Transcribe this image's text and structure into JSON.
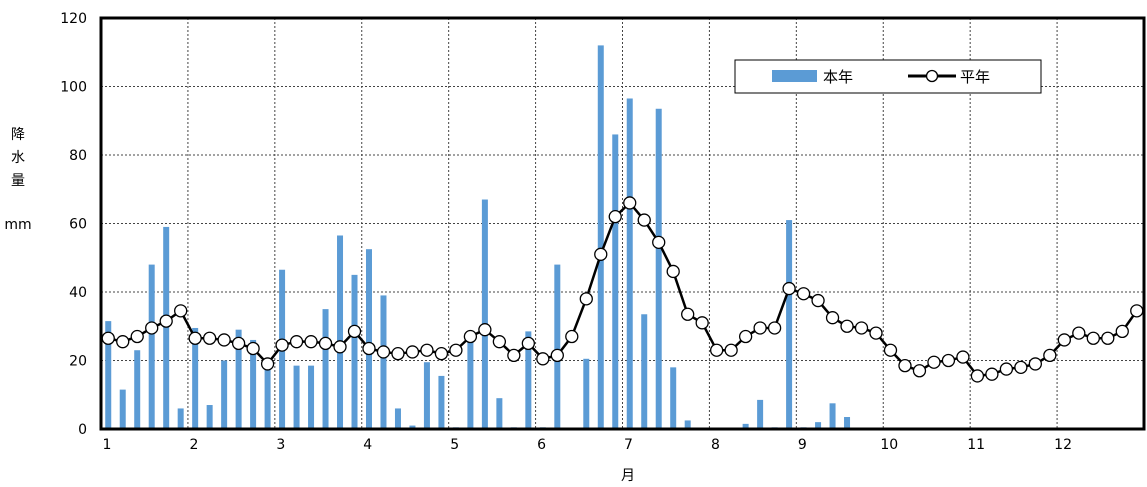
{
  "chart_data": {
    "type": "bar+line",
    "xlabel": "月",
    "ylabel_chars": [
      "降",
      "水",
      "量"
    ],
    "yunit": "mm",
    "ylim": [
      0,
      120
    ],
    "yticks": [
      0,
      20,
      40,
      60,
      80,
      100,
      120
    ],
    "month_labels": [
      "1",
      "2",
      "3",
      "4",
      "5",
      "6",
      "7",
      "8",
      "9",
      "10",
      "11",
      "12"
    ],
    "grid": true,
    "legend_position": "top-right",
    "series": [
      {
        "name": "本年",
        "kind": "bar",
        "color": "#5b9bd5",
        "values": [
          31.5,
          11.5,
          23,
          48,
          59,
          6,
          29.5,
          7,
          20,
          29,
          26,
          17.5,
          46.5,
          18.5,
          18.5,
          35,
          56.5,
          45,
          52.5,
          39,
          6,
          1,
          19.5,
          15.5,
          0.5,
          26.5,
          67,
          9,
          0.5,
          28.5,
          0.5,
          48,
          0,
          20.5,
          112,
          86,
          96.5,
          33.5,
          93.5,
          18,
          2.5,
          0,
          0,
          0,
          1.5,
          8.5,
          0.5,
          61,
          0.5,
          2,
          7.5,
          3.5,
          0,
          0,
          0,
          0,
          0,
          0,
          0,
          0,
          0,
          0,
          0,
          0,
          0,
          0,
          0,
          0,
          0,
          0,
          0,
          0
        ]
      },
      {
        "name": "平年",
        "kind": "line",
        "color": "#000000",
        "values": [
          26.5,
          25.5,
          27,
          29.5,
          31.5,
          34.5,
          26.5,
          26.5,
          26,
          25,
          23.5,
          19,
          24.5,
          25.5,
          25.5,
          25,
          24,
          28.5,
          23.5,
          22.5,
          22,
          22.5,
          23,
          22,
          23,
          27,
          29,
          25.5,
          21.5,
          25,
          20.5,
          21.5,
          27,
          38,
          51,
          62,
          66,
          61,
          54.5,
          46,
          33.5,
          31,
          23,
          23,
          27,
          29.5,
          29.5,
          41,
          39.5,
          37.5,
          32.5,
          30,
          29.5,
          28,
          23,
          18.5,
          17,
          19.5,
          20,
          21,
          15.5,
          16,
          17.5,
          18,
          19,
          21.5,
          26,
          28,
          26.5,
          26.5,
          28.5,
          34.5
        ]
      }
    ]
  }
}
